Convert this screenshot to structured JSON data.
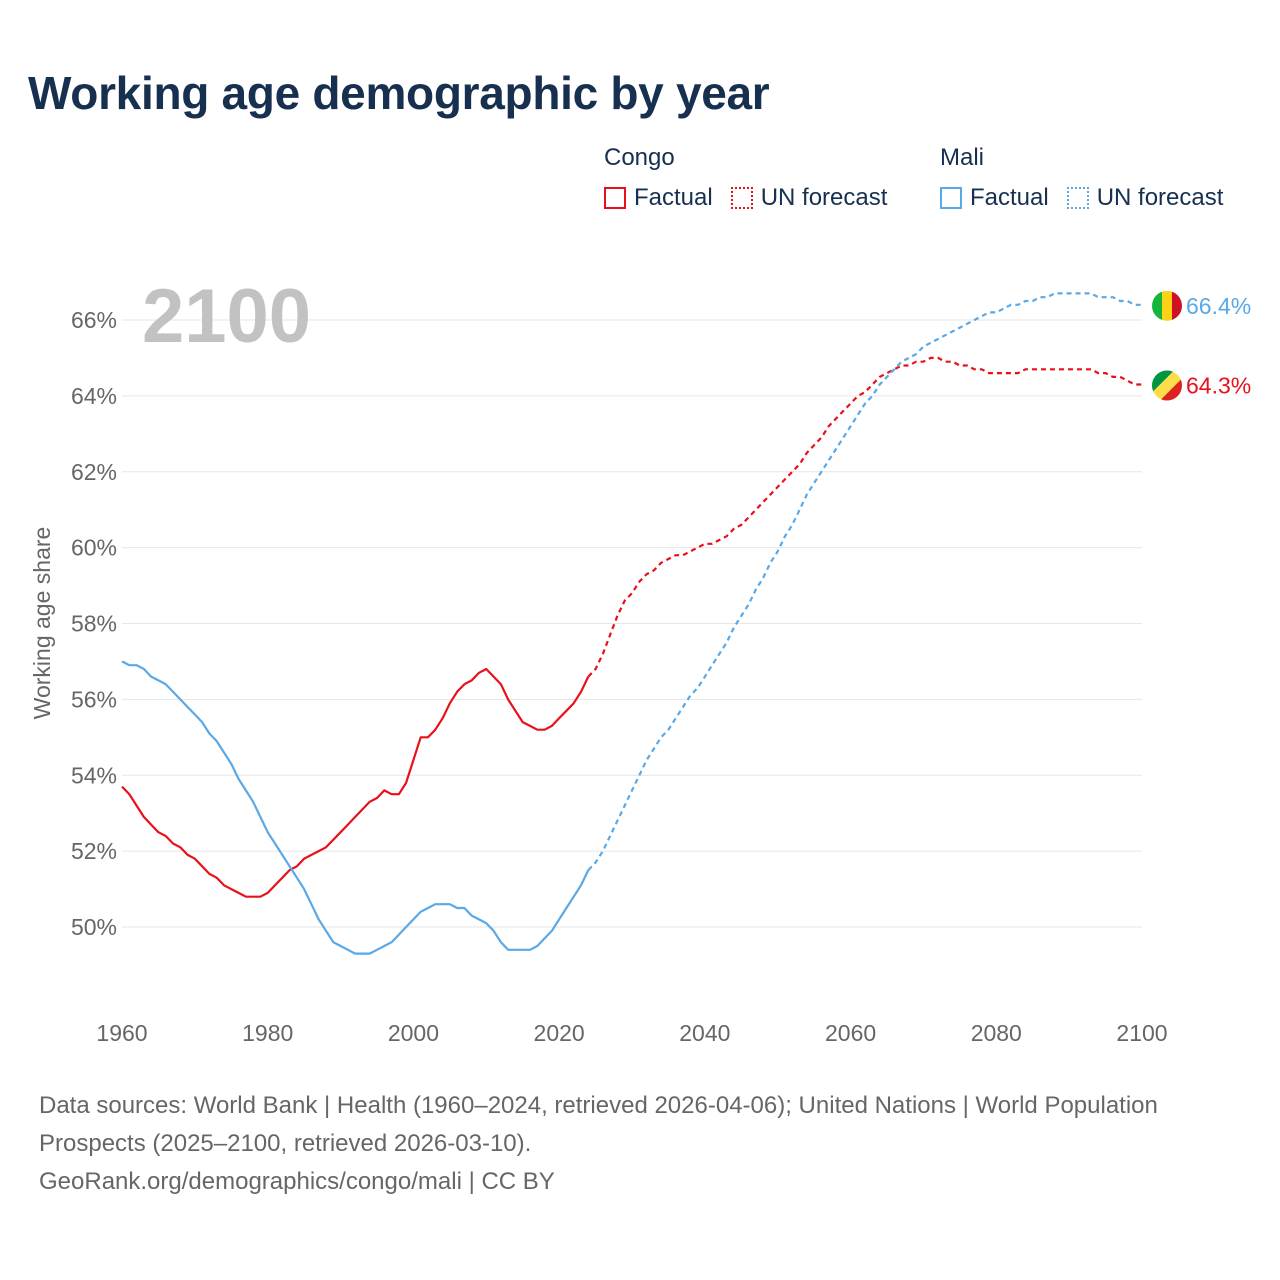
{
  "title": "Working age demographic by year",
  "legend": {
    "groups": [
      {
        "country": "Congo",
        "factual_label": "Factual",
        "forecast_label": "UN forecast",
        "color": "#e8101a"
      },
      {
        "country": "Mali",
        "factual_label": "Factual",
        "forecast_label": "UN forecast",
        "color": "#5aa8e6"
      }
    ]
  },
  "footer": {
    "line1": "Data sources: World Bank | Health (1960–2024, retrieved 2026-04-06); United Nations | World Population Prospects (2025–2100, retrieved 2026-03-10).",
    "line2": "GeoRank.org/demographics/congo/mali | CC BY"
  },
  "chart_data": {
    "type": "line",
    "year_label": "2100",
    "ylabel": "Working age share",
    "xlim": [
      1960,
      2100
    ],
    "ylim": [
      48.3,
      67.3
    ],
    "x_ticks": [
      1960,
      1980,
      2000,
      2020,
      2040,
      2060,
      2080,
      2100
    ],
    "y_ticks": [
      50,
      52,
      54,
      56,
      58,
      60,
      62,
      64,
      66
    ],
    "y_tick_format": "%",
    "factual_range": [
      1960,
      2024
    ],
    "forecast_range": [
      2024,
      2100
    ],
    "series": [
      {
        "name": "Congo",
        "color": "#e8101a",
        "end_label": "64.3%",
        "points": [
          [
            1960,
            53.7
          ],
          [
            1961,
            53.5
          ],
          [
            1962,
            53.2
          ],
          [
            1963,
            52.9
          ],
          [
            1964,
            52.7
          ],
          [
            1965,
            52.5
          ],
          [
            1966,
            52.4
          ],
          [
            1967,
            52.2
          ],
          [
            1968,
            52.1
          ],
          [
            1969,
            51.9
          ],
          [
            1970,
            51.8
          ],
          [
            1971,
            51.6
          ],
          [
            1972,
            51.4
          ],
          [
            1973,
            51.3
          ],
          [
            1974,
            51.1
          ],
          [
            1975,
            51.0
          ],
          [
            1976,
            50.9
          ],
          [
            1977,
            50.8
          ],
          [
            1978,
            50.8
          ],
          [
            1979,
            50.8
          ],
          [
            1980,
            50.9
          ],
          [
            1981,
            51.1
          ],
          [
            1982,
            51.3
          ],
          [
            1983,
            51.5
          ],
          [
            1984,
            51.6
          ],
          [
            1985,
            51.8
          ],
          [
            1986,
            51.9
          ],
          [
            1987,
            52.0
          ],
          [
            1988,
            52.1
          ],
          [
            1989,
            52.3
          ],
          [
            1990,
            52.5
          ],
          [
            1991,
            52.7
          ],
          [
            1992,
            52.9
          ],
          [
            1993,
            53.1
          ],
          [
            1994,
            53.3
          ],
          [
            1995,
            53.4
          ],
          [
            1996,
            53.6
          ],
          [
            1997,
            53.5
          ],
          [
            1998,
            53.5
          ],
          [
            1999,
            53.8
          ],
          [
            2000,
            54.4
          ],
          [
            2001,
            55.0
          ],
          [
            2002,
            55.0
          ],
          [
            2003,
            55.2
          ],
          [
            2004,
            55.5
          ],
          [
            2005,
            55.9
          ],
          [
            2006,
            56.2
          ],
          [
            2007,
            56.4
          ],
          [
            2008,
            56.5
          ],
          [
            2009,
            56.7
          ],
          [
            2010,
            56.8
          ],
          [
            2011,
            56.6
          ],
          [
            2012,
            56.4
          ],
          [
            2013,
            56.0
          ],
          [
            2014,
            55.7
          ],
          [
            2015,
            55.4
          ],
          [
            2016,
            55.3
          ],
          [
            2017,
            55.2
          ],
          [
            2018,
            55.2
          ],
          [
            2019,
            55.3
          ],
          [
            2020,
            55.5
          ],
          [
            2021,
            55.7
          ],
          [
            2022,
            55.9
          ],
          [
            2023,
            56.2
          ],
          [
            2024,
            56.6
          ],
          [
            2025,
            56.8
          ],
          [
            2026,
            57.2
          ],
          [
            2027,
            57.7
          ],
          [
            2028,
            58.2
          ],
          [
            2029,
            58.6
          ],
          [
            2030,
            58.8
          ],
          [
            2031,
            59.1
          ],
          [
            2032,
            59.3
          ],
          [
            2033,
            59.4
          ],
          [
            2034,
            59.6
          ],
          [
            2035,
            59.7
          ],
          [
            2036,
            59.8
          ],
          [
            2037,
            59.8
          ],
          [
            2038,
            59.9
          ],
          [
            2039,
            60.0
          ],
          [
            2040,
            60.1
          ],
          [
            2041,
            60.1
          ],
          [
            2042,
            60.2
          ],
          [
            2043,
            60.3
          ],
          [
            2044,
            60.5
          ],
          [
            2045,
            60.6
          ],
          [
            2046,
            60.8
          ],
          [
            2047,
            61.0
          ],
          [
            2048,
            61.2
          ],
          [
            2049,
            61.4
          ],
          [
            2050,
            61.6
          ],
          [
            2051,
            61.8
          ],
          [
            2052,
            62.0
          ],
          [
            2053,
            62.2
          ],
          [
            2054,
            62.5
          ],
          [
            2055,
            62.7
          ],
          [
            2056,
            62.9
          ],
          [
            2057,
            63.2
          ],
          [
            2058,
            63.4
          ],
          [
            2059,
            63.6
          ],
          [
            2060,
            63.8
          ],
          [
            2061,
            64.0
          ],
          [
            2062,
            64.1
          ],
          [
            2063,
            64.3
          ],
          [
            2064,
            64.5
          ],
          [
            2065,
            64.6
          ],
          [
            2066,
            64.7
          ],
          [
            2067,
            64.8
          ],
          [
            2068,
            64.8
          ],
          [
            2069,
            64.9
          ],
          [
            2070,
            64.9
          ],
          [
            2071,
            65.0
          ],
          [
            2072,
            65.0
          ],
          [
            2073,
            64.9
          ],
          [
            2074,
            64.9
          ],
          [
            2075,
            64.8
          ],
          [
            2076,
            64.8
          ],
          [
            2077,
            64.7
          ],
          [
            2078,
            64.7
          ],
          [
            2079,
            64.6
          ],
          [
            2080,
            64.6
          ],
          [
            2081,
            64.6
          ],
          [
            2082,
            64.6
          ],
          [
            2083,
            64.6
          ],
          [
            2084,
            64.7
          ],
          [
            2085,
            64.7
          ],
          [
            2086,
            64.7
          ],
          [
            2087,
            64.7
          ],
          [
            2088,
            64.7
          ],
          [
            2089,
            64.7
          ],
          [
            2090,
            64.7
          ],
          [
            2091,
            64.7
          ],
          [
            2092,
            64.7
          ],
          [
            2093,
            64.7
          ],
          [
            2094,
            64.6
          ],
          [
            2095,
            64.6
          ],
          [
            2096,
            64.5
          ],
          [
            2097,
            64.5
          ],
          [
            2098,
            64.4
          ],
          [
            2099,
            64.3
          ],
          [
            2100,
            64.3
          ]
        ]
      },
      {
        "name": "Mali",
        "color": "#5aa8e6",
        "end_label": "66.4%",
        "points": [
          [
            1960,
            57.0
          ],
          [
            1961,
            56.9
          ],
          [
            1962,
            56.9
          ],
          [
            1963,
            56.8
          ],
          [
            1964,
            56.6
          ],
          [
            1965,
            56.5
          ],
          [
            1966,
            56.4
          ],
          [
            1967,
            56.2
          ],
          [
            1968,
            56.0
          ],
          [
            1969,
            55.8
          ],
          [
            1970,
            55.6
          ],
          [
            1971,
            55.4
          ],
          [
            1972,
            55.1
          ],
          [
            1973,
            54.9
          ],
          [
            1974,
            54.6
          ],
          [
            1975,
            54.3
          ],
          [
            1976,
            53.9
          ],
          [
            1977,
            53.6
          ],
          [
            1978,
            53.3
          ],
          [
            1979,
            52.9
          ],
          [
            1980,
            52.5
          ],
          [
            1981,
            52.2
          ],
          [
            1982,
            51.9
          ],
          [
            1983,
            51.6
          ],
          [
            1984,
            51.3
          ],
          [
            1985,
            51.0
          ],
          [
            1986,
            50.6
          ],
          [
            1987,
            50.2
          ],
          [
            1988,
            49.9
          ],
          [
            1989,
            49.6
          ],
          [
            1990,
            49.5
          ],
          [
            1991,
            49.4
          ],
          [
            1992,
            49.3
          ],
          [
            1993,
            49.3
          ],
          [
            1994,
            49.3
          ],
          [
            1995,
            49.4
          ],
          [
            1996,
            49.5
          ],
          [
            1997,
            49.6
          ],
          [
            1998,
            49.8
          ],
          [
            1999,
            50.0
          ],
          [
            2000,
            50.2
          ],
          [
            2001,
            50.4
          ],
          [
            2002,
            50.5
          ],
          [
            2003,
            50.6
          ],
          [
            2004,
            50.6
          ],
          [
            2005,
            50.6
          ],
          [
            2006,
            50.5
          ],
          [
            2007,
            50.5
          ],
          [
            2008,
            50.3
          ],
          [
            2009,
            50.2
          ],
          [
            2010,
            50.1
          ],
          [
            2011,
            49.9
          ],
          [
            2012,
            49.6
          ],
          [
            2013,
            49.4
          ],
          [
            2014,
            49.4
          ],
          [
            2015,
            49.4
          ],
          [
            2016,
            49.4
          ],
          [
            2017,
            49.5
          ],
          [
            2018,
            49.7
          ],
          [
            2019,
            49.9
          ],
          [
            2020,
            50.2
          ],
          [
            2021,
            50.5
          ],
          [
            2022,
            50.8
          ],
          [
            2023,
            51.1
          ],
          [
            2024,
            51.5
          ],
          [
            2025,
            51.7
          ],
          [
            2026,
            52.0
          ],
          [
            2027,
            52.4
          ],
          [
            2028,
            52.8
          ],
          [
            2029,
            53.2
          ],
          [
            2030,
            53.6
          ],
          [
            2031,
            54.0
          ],
          [
            2032,
            54.4
          ],
          [
            2033,
            54.7
          ],
          [
            2034,
            55.0
          ],
          [
            2035,
            55.2
          ],
          [
            2036,
            55.5
          ],
          [
            2037,
            55.8
          ],
          [
            2038,
            56.1
          ],
          [
            2039,
            56.3
          ],
          [
            2040,
            56.6
          ],
          [
            2041,
            56.9
          ],
          [
            2042,
            57.2
          ],
          [
            2043,
            57.5
          ],
          [
            2044,
            57.9
          ],
          [
            2045,
            58.2
          ],
          [
            2046,
            58.5
          ],
          [
            2047,
            58.9
          ],
          [
            2048,
            59.2
          ],
          [
            2049,
            59.6
          ],
          [
            2050,
            59.9
          ],
          [
            2051,
            60.3
          ],
          [
            2052,
            60.6
          ],
          [
            2053,
            61.0
          ],
          [
            2054,
            61.4
          ],
          [
            2055,
            61.7
          ],
          [
            2056,
            62.0
          ],
          [
            2057,
            62.3
          ],
          [
            2058,
            62.6
          ],
          [
            2059,
            62.9
          ],
          [
            2060,
            63.2
          ],
          [
            2061,
            63.5
          ],
          [
            2062,
            63.8
          ],
          [
            2063,
            64.0
          ],
          [
            2064,
            64.3
          ],
          [
            2065,
            64.5
          ],
          [
            2066,
            64.7
          ],
          [
            2067,
            64.9
          ],
          [
            2068,
            65.0
          ],
          [
            2069,
            65.1
          ],
          [
            2070,
            65.3
          ],
          [
            2071,
            65.4
          ],
          [
            2072,
            65.5
          ],
          [
            2073,
            65.6
          ],
          [
            2074,
            65.7
          ],
          [
            2075,
            65.8
          ],
          [
            2076,
            65.9
          ],
          [
            2077,
            66.0
          ],
          [
            2078,
            66.1
          ],
          [
            2079,
            66.2
          ],
          [
            2080,
            66.2
          ],
          [
            2081,
            66.3
          ],
          [
            2082,
            66.4
          ],
          [
            2083,
            66.4
          ],
          [
            2084,
            66.5
          ],
          [
            2085,
            66.5
          ],
          [
            2086,
            66.6
          ],
          [
            2087,
            66.6
          ],
          [
            2088,
            66.7
          ],
          [
            2089,
            66.7
          ],
          [
            2090,
            66.7
          ],
          [
            2091,
            66.7
          ],
          [
            2092,
            66.7
          ],
          [
            2093,
            66.7
          ],
          [
            2094,
            66.6
          ],
          [
            2095,
            66.6
          ],
          [
            2096,
            66.6
          ],
          [
            2097,
            66.5
          ],
          [
            2098,
            66.5
          ],
          [
            2099,
            66.4
          ],
          [
            2100,
            66.4
          ]
        ]
      }
    ]
  }
}
